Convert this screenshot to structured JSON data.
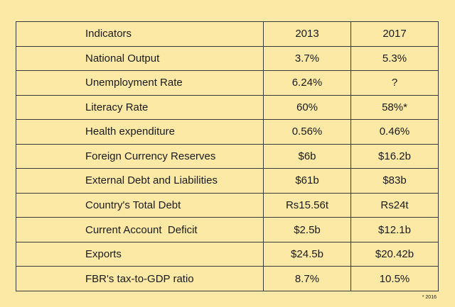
{
  "table": {
    "header": [
      "Indicators",
      "2013",
      "2017"
    ],
    "rows": [
      [
        "National Output",
        "3.7%",
        "5.3%"
      ],
      [
        "Unemployment Rate",
        "6.24%",
        "?"
      ],
      [
        "Literacy Rate",
        "60%",
        "58%*"
      ],
      [
        "Health expenditure",
        "0.56%",
        "0.46%"
      ],
      [
        "Foreign Currency Reserves",
        "$6b",
        "$16.2b"
      ],
      [
        "External Debt and Liabilities",
        "$61b",
        "$83b"
      ],
      [
        "Country's Total Debt",
        "Rs15.56t",
        "Rs24t"
      ],
      [
        "Current Account  Deficit",
        "$2.5b",
        "$12.1b"
      ],
      [
        "Exports",
        "$24.5b",
        "$20.42b"
      ],
      [
        "FBR's tax-to-GDP ratio",
        "8.7%",
        "10.5%"
      ]
    ]
  },
  "footnote": "* 2016"
}
